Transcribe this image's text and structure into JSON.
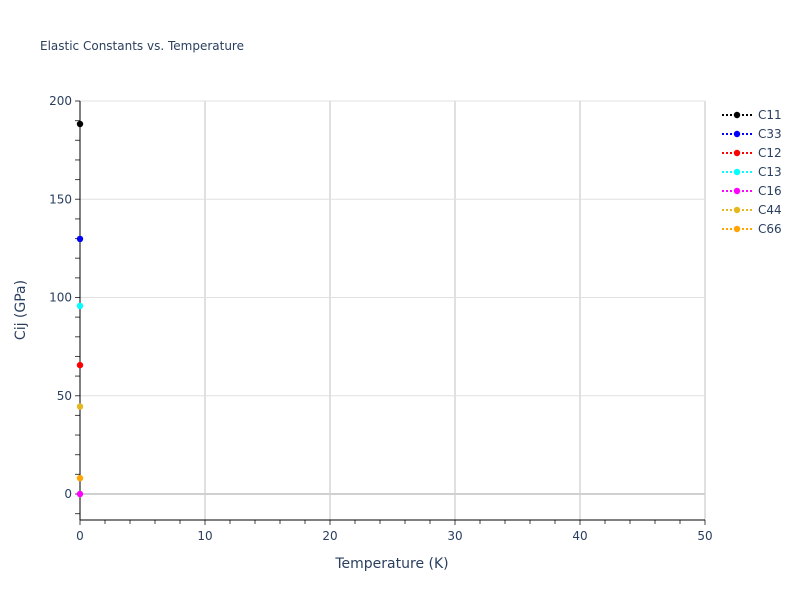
{
  "chart_data": {
    "type": "scatter",
    "title": "Elastic Constants vs. Temperature",
    "xlabel": "Temperature (K)",
    "ylabel": "Cij (GPa)",
    "xlim": [
      0,
      50
    ],
    "ylim": [
      -13,
      200
    ],
    "x_ticks": [
      "0",
      "10",
      "20",
      "30",
      "40",
      "50"
    ],
    "y_ticks": [
      "0",
      "50",
      "100",
      "150",
      "200"
    ],
    "grid": true,
    "legend_position": "top-right",
    "line_style": "dotted",
    "series": [
      {
        "name": "C11",
        "color": "#000000",
        "x": [
          0
        ],
        "y": [
          188.3
        ]
      },
      {
        "name": "C33",
        "color": "#0000ff",
        "x": [
          0
        ],
        "y": [
          129.8
        ]
      },
      {
        "name": "C12",
        "color": "#ff0000",
        "x": [
          0
        ],
        "y": [
          65.6
        ]
      },
      {
        "name": "C13",
        "color": "#00ffff",
        "x": [
          0
        ],
        "y": [
          95.7
        ]
      },
      {
        "name": "C16",
        "color": "#ff00ff",
        "x": [
          0
        ],
        "y": [
          0
        ]
      },
      {
        "name": "C44",
        "color": "#e6b820",
        "x": [
          0
        ],
        "y": [
          44.5
        ]
      },
      {
        "name": "C66",
        "color": "#ffa500",
        "x": [
          0
        ],
        "y": [
          8.1
        ]
      }
    ]
  }
}
